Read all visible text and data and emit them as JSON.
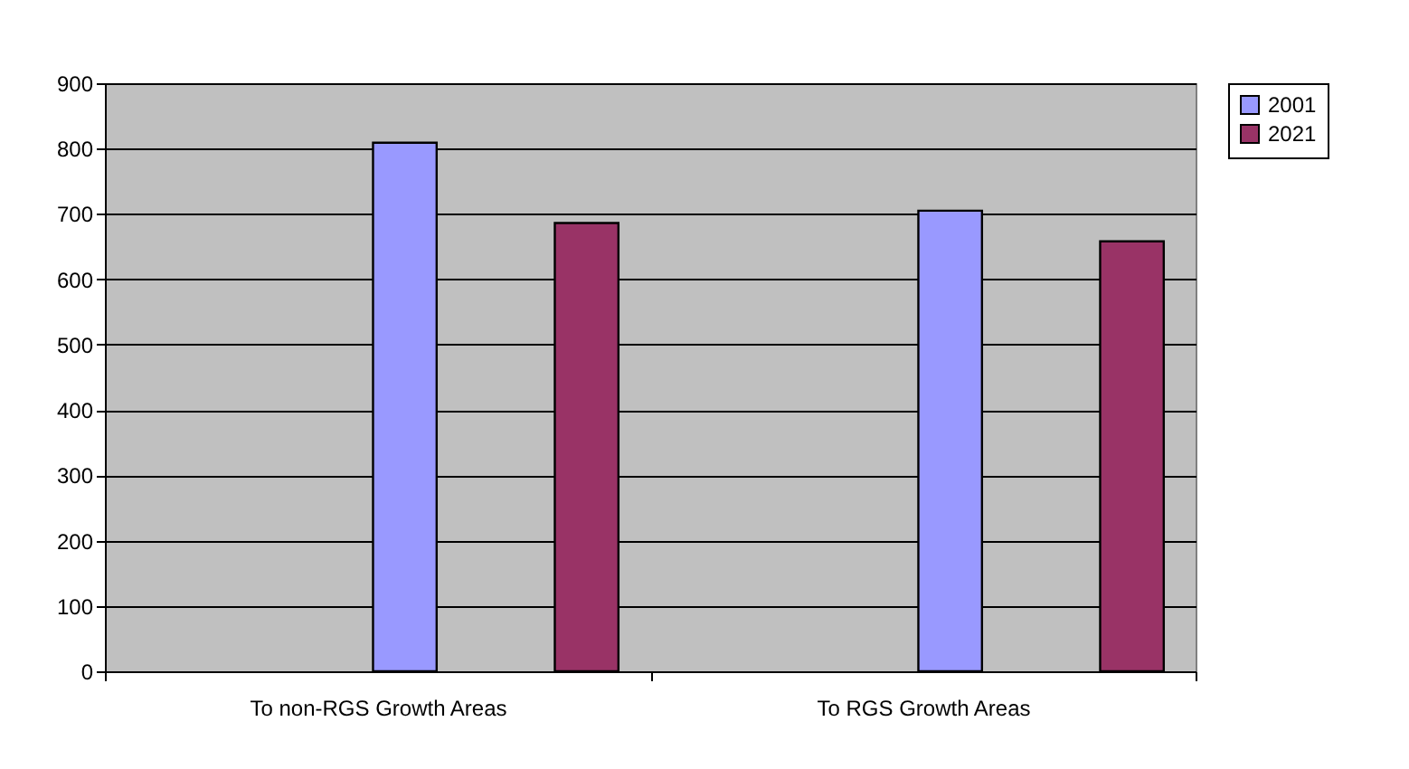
{
  "chart_data": {
    "type": "bar",
    "categories": [
      "To non-RGS Growth Areas",
      "To RGS Growth Areas"
    ],
    "series": [
      {
        "name": "2001",
        "color": "#9999ff",
        "values": [
          809,
          705
        ]
      },
      {
        "name": "2021",
        "color": "#993366",
        "values": [
          686,
          658
        ]
      }
    ],
    "ylim": [
      0,
      900
    ],
    "yticks": [
      0,
      100,
      200,
      300,
      400,
      500,
      600,
      700,
      800,
      900
    ],
    "grid": "y",
    "legend": "right"
  }
}
